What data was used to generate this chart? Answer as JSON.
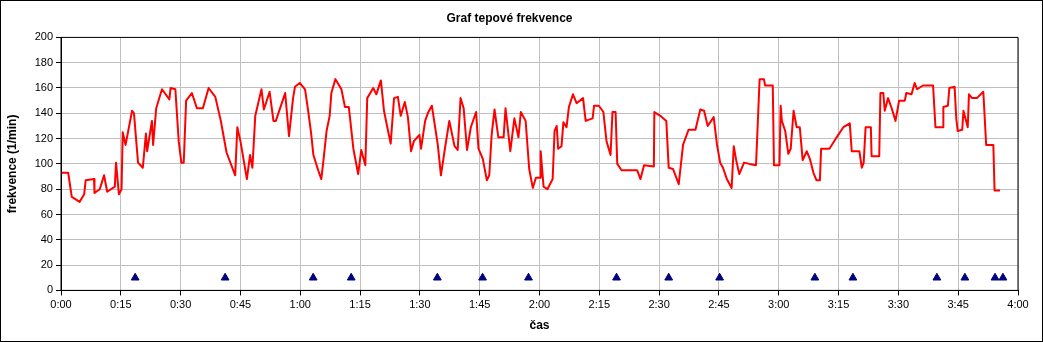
{
  "chart_data": {
    "type": "line",
    "title": "Graf tepové frekvence",
    "xlabel": "čas",
    "ylabel": "frekvence (1/min)",
    "xlim": [
      0,
      4
    ],
    "xticks": [
      {
        "value": 0,
        "label": "0:00"
      },
      {
        "value": 0.25,
        "label": "0:15"
      },
      {
        "value": 0.5,
        "label": "0:30"
      },
      {
        "value": 0.75,
        "label": "0:45"
      },
      {
        "value": 1,
        "label": "1:00"
      },
      {
        "value": 1.25,
        "label": "1:15"
      },
      {
        "value": 1.5,
        "label": "1:30"
      },
      {
        "value": 1.75,
        "label": "1:45"
      },
      {
        "value": 2,
        "label": "2:00"
      },
      {
        "value": 2.25,
        "label": "2:15"
      },
      {
        "value": 2.5,
        "label": "2:30"
      },
      {
        "value": 2.75,
        "label": "2:45"
      },
      {
        "value": 3,
        "label": "3:00"
      },
      {
        "value": 3.25,
        "label": "3:15"
      },
      {
        "value": 3.5,
        "label": "3:30"
      },
      {
        "value": 3.75,
        "label": "3:45"
      },
      {
        "value": 4,
        "label": "4:00"
      }
    ],
    "ylim": [
      0,
      200
    ],
    "yticks": [
      0,
      20,
      40,
      60,
      80,
      100,
      120,
      140,
      160,
      180,
      200
    ],
    "grid": true,
    "legend": false,
    "series": [
      {
        "type": "line",
        "color": "#ff0000",
        "x": [
          0.003,
          0.03,
          0.045,
          0.078,
          0.097,
          0.103,
          0.138,
          0.14,
          0.162,
          0.18,
          0.193,
          0.225,
          0.23,
          0.242,
          0.253,
          0.258,
          0.27,
          0.297,
          0.305,
          0.322,
          0.342,
          0.355,
          0.36,
          0.38,
          0.385,
          0.398,
          0.422,
          0.453,
          0.458,
          0.478,
          0.492,
          0.503,
          0.513,
          0.523,
          0.547,
          0.568,
          0.593,
          0.617,
          0.645,
          0.668,
          0.692,
          0.728,
          0.737,
          0.75,
          0.777,
          0.79,
          0.8,
          0.812,
          0.838,
          0.848,
          0.872,
          0.888,
          0.898,
          0.937,
          0.953,
          0.97,
          0.978,
          0.998,
          1.02,
          1.033,
          1.045,
          1.055,
          1.075,
          1.088,
          1.097,
          1.11,
          1.123,
          1.13,
          1.147,
          1.172,
          1.187,
          1.203,
          1.222,
          1.242,
          1.255,
          1.272,
          1.28,
          1.305,
          1.318,
          1.337,
          1.35,
          1.367,
          1.378,
          1.392,
          1.408,
          1.42,
          1.437,
          1.45,
          1.463,
          1.475,
          1.498,
          1.505,
          1.522,
          1.533,
          1.55,
          1.575,
          1.588,
          1.603,
          1.623,
          1.645,
          1.658,
          1.67,
          1.683,
          1.697,
          1.713,
          1.735,
          1.745,
          1.763,
          1.78,
          1.79,
          1.8,
          1.812,
          1.828,
          1.85,
          1.858,
          1.878,
          1.895,
          1.912,
          1.922,
          1.942,
          1.957,
          1.972,
          1.985,
          2.003,
          2.005,
          2.017,
          2.033,
          2.055,
          2.063,
          2.072,
          2.078,
          2.092,
          2.1,
          2.113,
          2.123,
          2.14,
          2.155,
          2.182,
          2.193,
          2.222,
          2.228,
          2.248,
          2.267,
          2.28,
          2.297,
          2.305,
          2.318,
          2.325,
          2.343,
          2.408,
          2.422,
          2.437,
          2.478,
          2.48,
          2.505,
          2.53,
          2.54,
          2.558,
          2.582,
          2.6,
          2.623,
          2.652,
          2.672,
          2.688,
          2.703,
          2.728,
          2.742,
          2.755,
          2.767,
          2.783,
          2.803,
          2.812,
          2.822,
          2.835,
          2.855,
          2.878,
          2.905,
          2.92,
          2.938,
          2.943,
          2.975,
          2.98,
          3.003,
          3.008,
          3.013,
          3.027,
          3.04,
          3.05,
          3.062,
          3.075,
          3.088,
          3.1,
          3.117,
          3.13,
          3.145,
          3.158,
          3.172,
          3.177,
          3.212,
          3.242,
          3.27,
          3.297,
          3.305,
          3.337,
          3.347,
          3.355,
          3.363,
          3.385,
          3.388,
          3.42,
          3.425,
          3.437,
          3.443,
          3.457,
          3.472,
          3.488,
          3.503,
          3.527,
          3.533,
          3.555,
          3.568,
          3.578,
          3.603,
          3.645,
          3.655,
          3.687,
          3.688,
          3.707,
          3.713,
          3.735,
          3.742,
          3.748,
          3.767,
          3.772,
          3.79,
          3.795,
          3.808,
          3.828,
          3.855,
          3.867,
          3.897,
          3.902,
          3.925
        ],
        "values": [
          93,
          93,
          74,
          70,
          76,
          87,
          88,
          77,
          80,
          91,
          78,
          82,
          101,
          76,
          80,
          125,
          115,
          142,
          140,
          101,
          97,
          124,
          110,
          134,
          115,
          144,
          159,
          151,
          160,
          159,
          118,
          101,
          101,
          150,
          156,
          144,
          144,
          160,
          153,
          134,
          109,
          91,
          129,
          118,
          88,
          107,
          97,
          138,
          159,
          143,
          157,
          134,
          134,
          156,
          122,
          152,
          161,
          164,
          159,
          142,
          125,
          107,
          95,
          88,
          103,
          126,
          138,
          156,
          167,
          159,
          145,
          145,
          112,
          92,
          111,
          99,
          152,
          160,
          155,
          166,
          142,
          126,
          116,
          152,
          153,
          138,
          149,
          137,
          110,
          118,
          123,
          112,
          134,
          140,
          146,
          115,
          91,
          110,
          134,
          114,
          111,
          152,
          144,
          111,
          129,
          141,
          112,
          104,
          87,
          91,
          123,
          143,
          121,
          121,
          144,
          110,
          136,
          121,
          141,
          134,
          96,
          81,
          89,
          89,
          110,
          82,
          80,
          88,
          126,
          130,
          112,
          114,
          133,
          129,
          145,
          155,
          148,
          152,
          134,
          136,
          146,
          146,
          141,
          118,
          107,
          141,
          141,
          100,
          95,
          95,
          88,
          99,
          98,
          141,
          138,
          134,
          97,
          96,
          84,
          115,
          127,
          127,
          143,
          142,
          130,
          137,
          115,
          101,
          97,
          88,
          81,
          114,
          103,
          92,
          101,
          100,
          99,
          167,
          167,
          162,
          162,
          99,
          99,
          146,
          134,
          126,
          108,
          112,
          142,
          129,
          129,
          103,
          110,
          104,
          93,
          87,
          87,
          112,
          112,
          121,
          129,
          132,
          110,
          110,
          97,
          101,
          129,
          129,
          106,
          106,
          156,
          156,
          142,
          152,
          144,
          134,
          150,
          150,
          156,
          155,
          164,
          159,
          162,
          162,
          129,
          129,
          145,
          146,
          160,
          161,
          136,
          126,
          127,
          142,
          129,
          155,
          152,
          152,
          157,
          115,
          115,
          79,
          79
        ]
      },
      {
        "type": "scatter",
        "color": "#000080",
        "marker": "triangle",
        "x": [
          0.31,
          0.686,
          1.054,
          1.213,
          1.573,
          1.762,
          1.954,
          2.322,
          2.54,
          2.753,
          3.151,
          3.31,
          3.661,
          3.778,
          3.904,
          3.937
        ],
        "values": [
          10,
          10,
          10,
          10,
          10,
          10,
          10,
          10,
          10,
          10,
          10,
          10,
          10,
          10,
          10,
          10
        ]
      }
    ]
  }
}
